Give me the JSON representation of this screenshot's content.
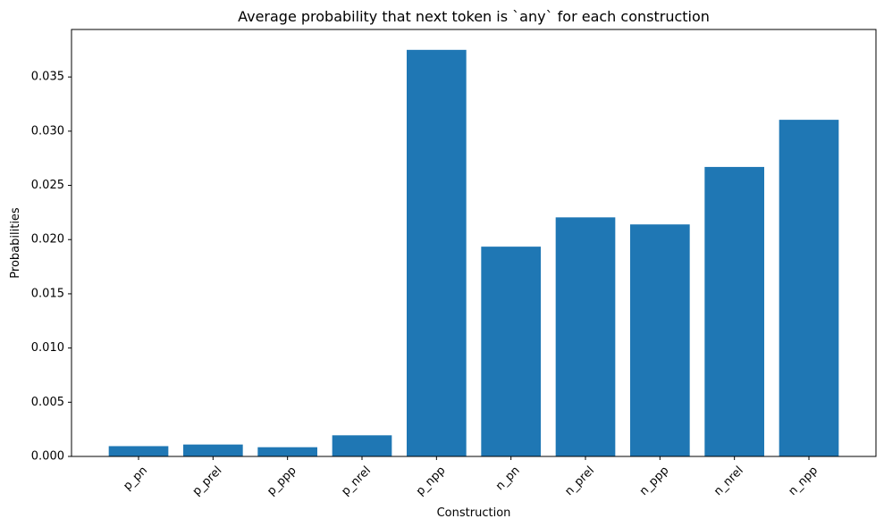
{
  "chart_data": {
    "type": "bar",
    "title": "Average probability that next token is `any` for each construction",
    "xlabel": "Construction",
    "ylabel": "Probabilities",
    "categories": [
      "p_pn",
      "p_prel",
      "p_ppp",
      "p_nrel",
      "p_npp",
      "n_pn",
      "n_prel",
      "n_ppp",
      "n_nrel",
      "n_npp"
    ],
    "values": [
      0.00095,
      0.0011,
      0.00085,
      0.00195,
      0.0375,
      0.01935,
      0.02205,
      0.0214,
      0.0267,
      0.03105
    ],
    "ylim": [
      0,
      0.03938
    ],
    "yticks": [
      0.0,
      0.005,
      0.01,
      0.015,
      0.02,
      0.025,
      0.03,
      0.035
    ],
    "ytick_labels": [
      "0.000",
      "0.005",
      "0.010",
      "0.015",
      "0.020",
      "0.025",
      "0.030",
      "0.035"
    ],
    "bar_color": "#1f77b4",
    "grid": false,
    "legend": "none"
  }
}
